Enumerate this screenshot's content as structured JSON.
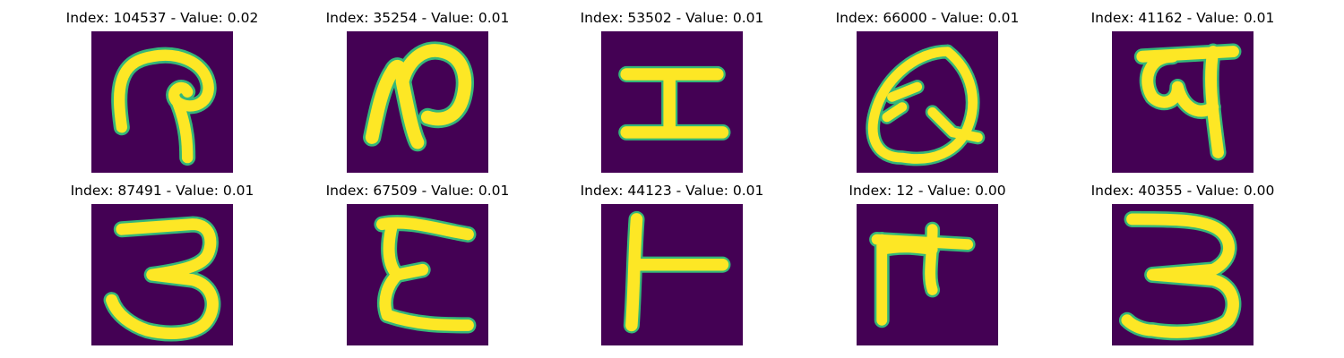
{
  "panels": [
    {
      "label": "Index: 104537 - Value: 0.02",
      "glyph": "sample-104537"
    },
    {
      "label": "Index: 35254 - Value: 0.01",
      "glyph": "sample-35254"
    },
    {
      "label": "Index: 53502 - Value: 0.01",
      "glyph": "sample-53502"
    },
    {
      "label": "Index: 66000 - Value: 0.01",
      "glyph": "sample-66000"
    },
    {
      "label": "Index: 41162 - Value: 0.01",
      "glyph": "sample-41162"
    },
    {
      "label": "Index: 87491 - Value: 0.01",
      "glyph": "sample-87491"
    },
    {
      "label": "Index: 67509 - Value: 0.01",
      "glyph": "sample-67509"
    },
    {
      "label": "Index: 44123 - Value: 0.01",
      "glyph": "sample-44123"
    },
    {
      "label": "Index: 12 - Value: 0.00",
      "glyph": "sample-12"
    },
    {
      "label": "Index: 40355 - Value: 0.00",
      "glyph": "sample-40355"
    }
  ],
  "colors": {
    "background": "#440154",
    "stroke": "#fde725",
    "edge": "#35b779"
  }
}
